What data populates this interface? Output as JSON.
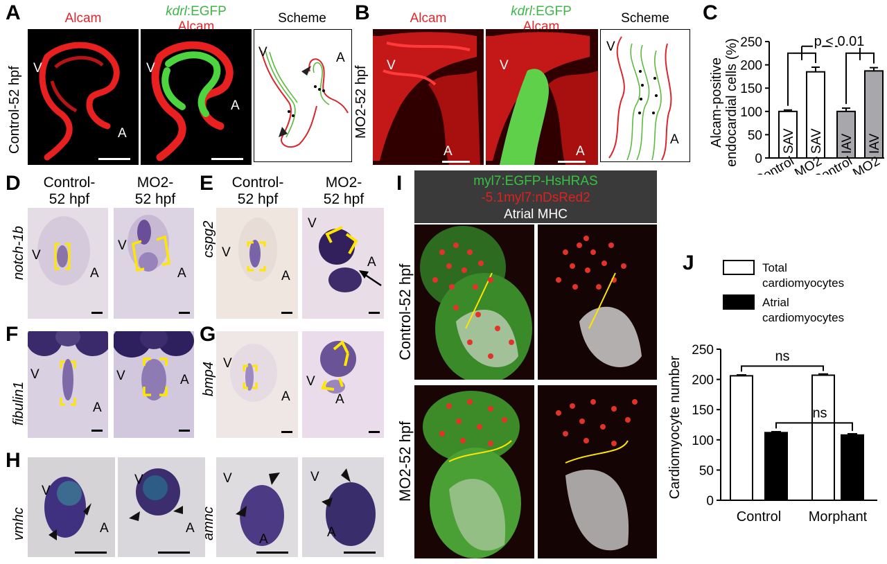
{
  "panels": {
    "A": "A",
    "B": "B",
    "C": "C",
    "D": "D",
    "E": "E",
    "F": "F",
    "G": "G",
    "H": "H",
    "I": "I",
    "J": "J"
  },
  "row1": {
    "alcam": "Alcam",
    "kdrl_gene": "kdrl",
    "kdrl_suffix": ":EGFP",
    "scheme": "Scheme",
    "control_side": "Control-52 hpf",
    "mo2_side": "MO2-52 hpf",
    "V": "V",
    "A": "A"
  },
  "ish": {
    "control_title_1": "Control-",
    "control_title_2": "52 hpf",
    "mo2_title_1": "MO2-",
    "mo2_title_2": "52 hpf",
    "genes": [
      "notch-1b",
      "cspg2",
      "fibulin1",
      "bmp4",
      "vmhc",
      "amhc"
    ]
  },
  "panel_I": {
    "line1": "myl7:EGFP-HsHRAS",
    "line2": "-5.1myl7:nDsRed2",
    "line3": "Atrial MHC",
    "control_side": "Control-52 hpf",
    "mo2_side": "MO2-52 hpf"
  },
  "chart_data": [
    {
      "type": "bar",
      "panel": "C",
      "ylabel": "Alcam-positive endocardial cells (%)",
      "ylabel_line1": "Alcam-positive",
      "ylabel_line2": "endocardial cells (%)",
      "categories": [
        "Control",
        "MO2",
        "Control",
        "MO2"
      ],
      "bar_labels": [
        "SAV",
        "SAV",
        "IAV",
        "IAV"
      ],
      "values": [
        100,
        185,
        100,
        187
      ],
      "errors": [
        3,
        10,
        7,
        7
      ],
      "colors": [
        "#ffffff",
        "#ffffff",
        "#a7a7ac",
        "#a7a7ac"
      ],
      "ylim": [
        0,
        250
      ],
      "yticks": [
        0,
        50,
        100,
        150,
        200,
        250
      ],
      "annotation": "p < 0.01"
    },
    {
      "type": "bar",
      "panel": "J",
      "ylabel": "Cardiomyocyte number",
      "categories": [
        "Control",
        "Morphant"
      ],
      "series": [
        {
          "name": "Total cardiomyocytes",
          "name_line1": "Total",
          "name_line2": "cardiomyocytes",
          "color": "#ffffff",
          "values": [
            206,
            207
          ]
        },
        {
          "name": "Atrial cardiomyocytes",
          "name_line1": "Atrial",
          "name_line2": "cardiomyocytes",
          "color": "#000000",
          "values": [
            112,
            108
          ]
        }
      ],
      "errors": [
        1.5,
        1.5,
        2,
        2
      ],
      "ylim": [
        0,
        250
      ],
      "yticks": [
        0,
        50,
        100,
        150,
        200,
        250
      ],
      "annotations": [
        "ns",
        "ns"
      ]
    }
  ]
}
